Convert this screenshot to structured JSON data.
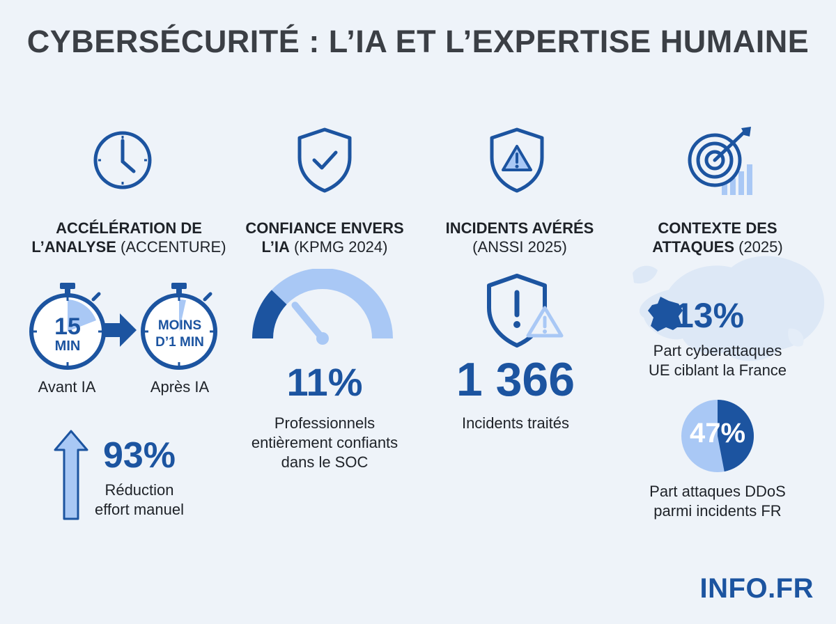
{
  "title": "CYBERSÉCURITÉ : L’IA ET L’EXPERTISE HUMAINE",
  "columns": {
    "acceleration": {
      "heading_bold_1": "ACCÉLÉRATION DE",
      "heading_bold_2": "L’ANALYSE",
      "heading_rest": "(ACCENTURE)",
      "before_value": "15",
      "before_unit": "MIN",
      "before_label": "Avant IA",
      "after_value_1": "MOINS",
      "after_value_2": "D’1 MIN",
      "after_label": "Après IA",
      "reduction_value": "93%",
      "reduction_caption_1": "Réduction",
      "reduction_caption_2": "effort manuel"
    },
    "confidence": {
      "heading_bold_1": "CONFIANCE ENVERS",
      "heading_bold_2": "L’IA",
      "heading_rest": "(KPMG 2024)",
      "value": "11%",
      "gauge_fraction": 0.11,
      "caption_1": "Professionnels",
      "caption_2": "entièrement confiants",
      "caption_3": "dans le SOC"
    },
    "incidents": {
      "heading_bold_1": "INCIDENTS AVÉRÉS",
      "heading_rest": "(ANSSI 2025)",
      "value": "1 366",
      "caption": "Incidents traités"
    },
    "context": {
      "heading_bold_1": "CONTEXTE DES",
      "heading_bold_2": "ATTAQUES",
      "heading_rest": "(2025)",
      "france_value": "13%",
      "france_caption_1": "Part cyberattaques",
      "france_caption_2": "UE ciblant la France",
      "ddos_value": "47%",
      "ddos_fraction": 0.47,
      "ddos_caption_1": "Part attaques DDoS",
      "ddos_caption_2": "parmi incidents FR"
    }
  },
  "logo": "INFO.FR",
  "colors": {
    "primary": "#1c54a0",
    "light": "#a9c8f5",
    "background": "#eef3f9"
  },
  "icons": [
    "clock-icon",
    "shield-check-icon",
    "shield-warning-icon",
    "target-arrow-icon",
    "stopwatch-icon",
    "arrow-up-icon",
    "gauge-icon",
    "europe-map-icon",
    "france-map-icon",
    "pie-icon"
  ]
}
